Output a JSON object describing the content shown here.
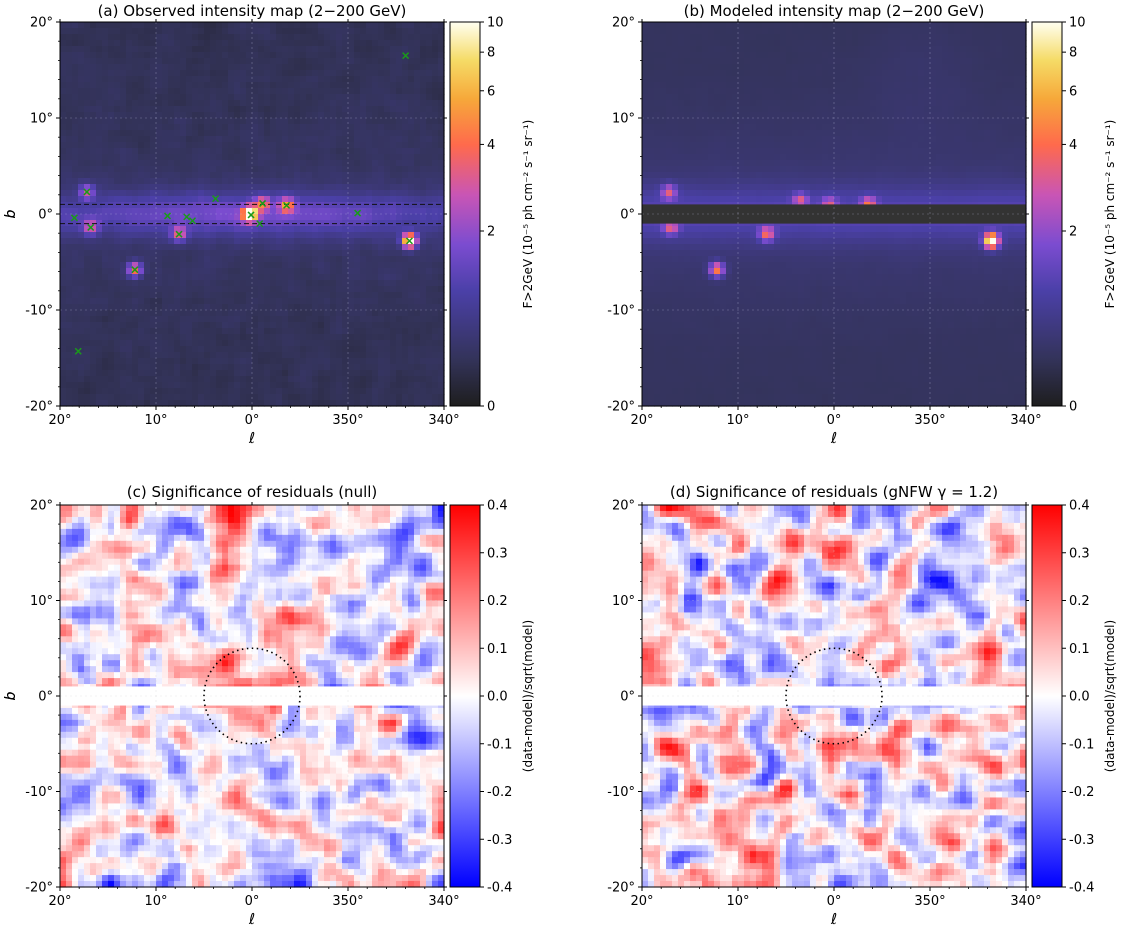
{
  "chart_data": [
    {
      "type": "heatmap",
      "title": "(a) Observed intensity map (2−200 GeV)",
      "xlabel": "ℓ",
      "ylabel": "b",
      "xticks": [
        "20°",
        "10°",
        "0°",
        "350°",
        "340°"
      ],
      "xtick_values": [
        20,
        10,
        0,
        -10,
        -20
      ],
      "yticks": [
        "20°",
        "10°",
        "0°",
        "-10°",
        "-20°"
      ],
      "ytick_values": [
        20,
        10,
        0,
        -10,
        -20
      ],
      "xlim": [
        20,
        -20
      ],
      "ylim": [
        -20,
        20
      ],
      "colorbar": {
        "label": "F>2GeV (10⁻⁵ ph cm⁻² s⁻¹ sr⁻¹)",
        "ticks": [
          "10",
          "8",
          "6",
          "4",
          "2",
          "0"
        ],
        "tick_values": [
          10,
          8,
          6,
          4,
          2,
          0
        ],
        "range": [
          0,
          10
        ],
        "colormap": "CMRmap"
      },
      "masked_band": [
        -1,
        1
      ],
      "sources": [
        {
          "l": 18.5,
          "b": -0.4
        },
        {
          "l": 17.2,
          "b": 2.3
        },
        {
          "l": 16.8,
          "b": -1.4
        },
        {
          "l": 12.2,
          "b": -5.8
        },
        {
          "l": 8.8,
          "b": -0.2
        },
        {
          "l": 7.6,
          "b": -2.1
        },
        {
          "l": 6.8,
          "b": -0.3
        },
        {
          "l": 6.2,
          "b": -0.7
        },
        {
          "l": 3.8,
          "b": 1.6
        },
        {
          "l": 0.1,
          "b": -0.1
        },
        {
          "l": -0.8,
          "b": -1.0
        },
        {
          "l": -1.1,
          "b": 1.1
        },
        {
          "l": -3.6,
          "b": 0.9
        },
        {
          "l": -11.0,
          "b": 0.1
        },
        {
          "l": -16.4,
          "b": -2.8
        },
        {
          "l": -16.0,
          "b": 16.5
        },
        {
          "l": 18.1,
          "b": -14.3
        }
      ],
      "bright_spots": [
        {
          "l": 0.2,
          "b": 0.0,
          "v": 9.5
        },
        {
          "l": -16.4,
          "b": -2.8,
          "v": 10
        },
        {
          "l": 12.2,
          "b": -5.8,
          "v": 6.5
        },
        {
          "l": -3.6,
          "b": 0.9,
          "v": 5.5
        },
        {
          "l": 7.6,
          "b": -2.1,
          "v": 5.0
        },
        {
          "l": 17.2,
          "b": 2.3,
          "v": 4.6
        },
        {
          "l": 16.8,
          "b": -1.4,
          "v": 4.4
        },
        {
          "l": -1.1,
          "b": 1.1,
          "v": 5.0
        }
      ]
    },
    {
      "type": "heatmap",
      "title": "(b) Modeled intensity map (2−200 GeV)",
      "xlabel": "ℓ",
      "ylabel": "b",
      "xticks": [
        "20°",
        "10°",
        "0°",
        "350°",
        "340°"
      ],
      "xtick_values": [
        20,
        10,
        0,
        -10,
        -20
      ],
      "yticks": [
        "20°",
        "10°",
        "0°",
        "-10°",
        "-20°"
      ],
      "ytick_values": [
        20,
        10,
        0,
        -10,
        -20
      ],
      "xlim": [
        20,
        -20
      ],
      "ylim": [
        -20,
        20
      ],
      "colorbar": {
        "label": "F>2GeV (10⁻⁵ ph cm⁻² s⁻¹ sr⁻¹)",
        "ticks": [
          "10",
          "8",
          "6",
          "4",
          "2",
          "0"
        ],
        "tick_values": [
          10,
          8,
          6,
          4,
          2,
          0
        ],
        "range": [
          0,
          10
        ],
        "colormap": "CMRmap"
      },
      "masked_band": [
        -1,
        1
      ],
      "bright_spots": [
        {
          "l": -16.4,
          "b": -2.8,
          "v": 10
        },
        {
          "l": 12.2,
          "b": -5.8,
          "v": 6.5
        },
        {
          "l": 7.0,
          "b": -2.1,
          "v": 5.2
        },
        {
          "l": 17.2,
          "b": 2.3,
          "v": 4.6
        },
        {
          "l": 17.0,
          "b": -1.4,
          "v": 4.4
        },
        {
          "l": -3.6,
          "b": 1.0,
          "v": 5.0
        },
        {
          "l": 3.5,
          "b": 1.4,
          "v": 4.2
        },
        {
          "l": 0.5,
          "b": 1.0,
          "v": 4.0
        }
      ]
    },
    {
      "type": "heatmap",
      "title": "(c) Significance of residuals (null)",
      "xlabel": "ℓ",
      "ylabel": "b",
      "xticks": [
        "20°",
        "10°",
        "0°",
        "350°",
        "340°"
      ],
      "xtick_values": [
        20,
        10,
        0,
        -10,
        -20
      ],
      "yticks": [
        "20°",
        "10°",
        "0°",
        "-10°",
        "-20°"
      ],
      "ytick_values": [
        20,
        10,
        0,
        -10,
        -20
      ],
      "xlim": [
        20,
        -20
      ],
      "ylim": [
        -20,
        20
      ],
      "colorbar": {
        "label": "(data-model)/sqrt(model)",
        "ticks": [
          "0.4",
          "0.3",
          "0.2",
          "0.1",
          "0.0",
          "-0.1",
          "-0.2",
          "-0.3",
          "-0.4"
        ],
        "tick_values": [
          0.4,
          0.3,
          0.2,
          0.1,
          0.0,
          -0.1,
          -0.2,
          -0.3,
          -0.4
        ],
        "range": [
          -0.4,
          0.4
        ],
        "colormap": "bwr"
      },
      "masked_band": [
        -1,
        1
      ],
      "roi_circle": {
        "l": 0,
        "b": 0,
        "r": 5
      },
      "excess": {
        "l": 0,
        "b": 0,
        "sigma": 3.5,
        "amp": 0.16
      }
    },
    {
      "type": "heatmap",
      "title": "(d) Significance of residuals (gNFW γ = 1.2)",
      "xlabel": "ℓ",
      "ylabel": "b",
      "xticks": [
        "20°",
        "10°",
        "0°",
        "350°",
        "340°"
      ],
      "xtick_values": [
        20,
        10,
        0,
        -10,
        -20
      ],
      "yticks": [
        "20°",
        "10°",
        "0°",
        "-10°",
        "-20°"
      ],
      "ytick_values": [
        20,
        10,
        0,
        -10,
        -20
      ],
      "xlim": [
        20,
        -20
      ],
      "ylim": [
        -20,
        20
      ],
      "colorbar": {
        "label": "(data-model)/sqrt(model)",
        "ticks": [
          "0.4",
          "0.3",
          "0.2",
          "0.1",
          "0.0",
          "-0.1",
          "-0.2",
          "-0.3",
          "-0.4"
        ],
        "tick_values": [
          0.4,
          0.3,
          0.2,
          0.1,
          0.0,
          -0.1,
          -0.2,
          -0.3,
          -0.4
        ],
        "range": [
          -0.4,
          0.4
        ],
        "colormap": "bwr"
      },
      "masked_band": [
        -1,
        1
      ],
      "roi_circle": {
        "l": 0,
        "b": 0,
        "r": 5
      },
      "excess": {
        "l": 0,
        "b": 0,
        "sigma": 3.5,
        "amp": 0.0
      }
    }
  ]
}
